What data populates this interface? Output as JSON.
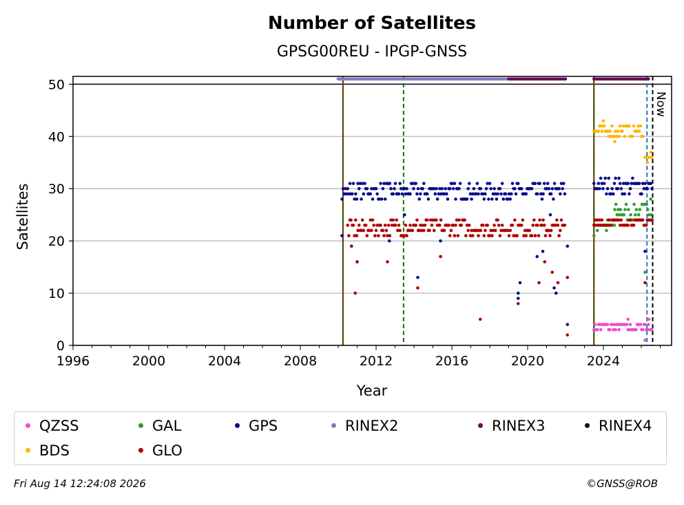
{
  "chart_data": {
    "type": "scatter",
    "title": "Number of Satellites",
    "subtitle": "GPSG00REU - IPGP-GNSS",
    "xlabel": "Year",
    "ylabel": "Satellites",
    "xlim": [
      1996,
      2027.6
    ],
    "ylim": [
      0,
      51.5
    ],
    "x_ticks": [
      "1996",
      "2000",
      "2004",
      "2008",
      "2012",
      "2016",
      "2020",
      "2024"
    ],
    "y_ticks": [
      "0",
      "10",
      "20",
      "30",
      "40",
      "50"
    ],
    "grid": "horizontal",
    "now_label": "Now",
    "series": [
      {
        "name": "QZSS",
        "color": "#e84fd1",
        "segments": [
          {
            "x": [
              2023.5,
              2026.6
            ],
            "y": [
              3,
              4
            ]
          }
        ],
        "outliers": [
          {
            "x": 2025.3,
            "y": 5
          },
          {
            "x": 2026.2,
            "y": 1
          },
          {
            "x": 2026.4,
            "y": 5
          }
        ]
      },
      {
        "name": "GAL",
        "color": "#2ca02c",
        "segments": [
          {
            "x": [
              2023.5,
              2024.6
            ],
            "y": [
              22,
              24
            ]
          },
          {
            "x": [
              2024.6,
              2026.6
            ],
            "y": [
              24,
              27
            ]
          }
        ],
        "outliers": [
          {
            "x": 2023.5,
            "y": 21
          },
          {
            "x": 2026.2,
            "y": 14
          },
          {
            "x": 2026.5,
            "y": 28
          }
        ]
      },
      {
        "name": "GPS",
        "color": "#0a0a8c",
        "segments": [
          {
            "x": [
              2010.2,
              2022.0
            ],
            "y": [
              28,
              31
            ]
          },
          {
            "x": [
              2023.5,
              2026.6
            ],
            "y": [
              29,
              32
            ]
          }
        ],
        "outliers": [
          {
            "x": 2010.2,
            "y": 21
          },
          {
            "x": 2010.7,
            "y": 19
          },
          {
            "x": 2011.0,
            "y": 16
          },
          {
            "x": 2012.7,
            "y": 20
          },
          {
            "x": 2013.5,
            "y": 25
          },
          {
            "x": 2014.2,
            "y": 13
          },
          {
            "x": 2015.4,
            "y": 20
          },
          {
            "x": 2019.5,
            "y": 10
          },
          {
            "x": 2019.5,
            "y": 9
          },
          {
            "x": 2019.6,
            "y": 12
          },
          {
            "x": 2020.5,
            "y": 17
          },
          {
            "x": 2020.8,
            "y": 18
          },
          {
            "x": 2021.2,
            "y": 25
          },
          {
            "x": 2021.4,
            "y": 11
          },
          {
            "x": 2021.5,
            "y": 10
          },
          {
            "x": 2022.1,
            "y": 19
          },
          {
            "x": 2022.1,
            "y": 4
          },
          {
            "x": 2026.2,
            "y": 18
          }
        ]
      },
      {
        "name": "RINEX2",
        "color": "#7f7fbf",
        "segments": [
          {
            "x": [
              2010.0,
              2019.0
            ],
            "y": [
              51,
              51
            ]
          }
        ],
        "outliers": []
      },
      {
        "name": "RINEX3",
        "color": "#6a0a5a",
        "segments": [
          {
            "x": [
              2019.0,
              2022.0
            ],
            "y": [
              51,
              51
            ]
          },
          {
            "x": [
              2023.5,
              2026.4
            ],
            "y": [
              51,
              51
            ]
          }
        ],
        "outliers": []
      },
      {
        "name": "RINEX4",
        "color": "#1a0a1a",
        "segments": [],
        "outliers": []
      },
      {
        "name": "BDS",
        "color": "#ffb400",
        "segments": [
          {
            "x": [
              2023.5,
              2026.1
            ],
            "y": [
              40,
              42
            ]
          },
          {
            "x": [
              2026.2,
              2026.6
            ],
            "y": [
              35,
              37
            ]
          }
        ],
        "outliers": [
          {
            "x": 2024.0,
            "y": 43
          },
          {
            "x": 2024.6,
            "y": 39
          }
        ]
      },
      {
        "name": "GLO",
        "color": "#b00000",
        "segments": [
          {
            "x": [
              2010.5,
              2022.0
            ],
            "y": [
              21,
              24
            ]
          },
          {
            "x": [
              2023.5,
              2026.6
            ],
            "y": [
              23,
              24
            ]
          }
        ],
        "outliers": [
          {
            "x": 2010.7,
            "y": 19
          },
          {
            "x": 2010.9,
            "y": 10
          },
          {
            "x": 2011.0,
            "y": 16
          },
          {
            "x": 2012.6,
            "y": 16
          },
          {
            "x": 2014.2,
            "y": 11
          },
          {
            "x": 2015.4,
            "y": 17
          },
          {
            "x": 2017.5,
            "y": 5
          },
          {
            "x": 2019.5,
            "y": 8
          },
          {
            "x": 2020.6,
            "y": 12
          },
          {
            "x": 2020.9,
            "y": 16
          },
          {
            "x": 2021.3,
            "y": 14
          },
          {
            "x": 2021.6,
            "y": 12
          },
          {
            "x": 2022.1,
            "y": 13
          },
          {
            "x": 2022.1,
            "y": 2
          },
          {
            "x": 2026.2,
            "y": 12
          }
        ]
      }
    ],
    "vertical_lines": [
      {
        "x": 2010.25,
        "color": "#b00000",
        "style": "solid"
      },
      {
        "x": 2010.25,
        "color": "#007a00",
        "style": "dashed"
      },
      {
        "x": 2013.45,
        "color": "#007a00",
        "style": "dashed"
      },
      {
        "x": 2023.5,
        "color": "#b00000",
        "style": "solid"
      },
      {
        "x": 2023.5,
        "color": "#007a00",
        "style": "dashed"
      },
      {
        "x": 2026.3,
        "color": "#1f77b4",
        "style": "dashed"
      },
      {
        "x": 2026.6,
        "color": "#000000",
        "style": "dashed"
      }
    ]
  },
  "legend": [
    {
      "label": "QZSS",
      "color": "#e84fd1"
    },
    {
      "label": "GAL",
      "color": "#2ca02c"
    },
    {
      "label": "GPS",
      "color": "#0a0a8c"
    },
    {
      "label": "RINEX2",
      "color": "#7f7fbf"
    },
    {
      "label": "RINEX3",
      "color": "#6a0a5a"
    },
    {
      "label": "RINEX4",
      "color": "#1a0a1a"
    },
    {
      "label": "BDS",
      "color": "#ffb400"
    },
    {
      "label": "GLO",
      "color": "#b00000"
    }
  ],
  "footer": {
    "timestamp": "Fri Aug 14 12:24:08 2026",
    "credit": "©GNSS@ROB"
  }
}
